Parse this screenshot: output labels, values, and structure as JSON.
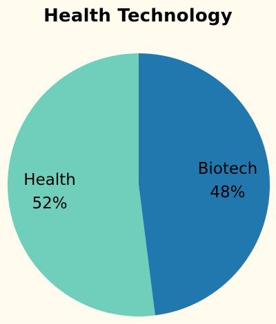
{
  "chart_data": {
    "type": "pie",
    "title": "Health Technology",
    "slices": [
      {
        "label": "Biotech",
        "value": 48,
        "value_label": "48%",
        "color": "#2178ae"
      },
      {
        "label": "Health",
        "value": 52,
        "value_label": "52%",
        "color": "#70cfbb"
      }
    ],
    "legend": "none"
  },
  "colors": {
    "background": "#fffbef"
  }
}
